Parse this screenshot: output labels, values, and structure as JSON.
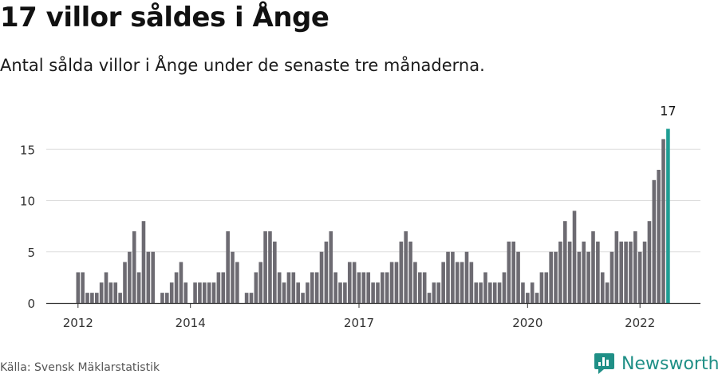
{
  "header": {
    "title": "17 villor såldes i Ånge",
    "subtitle": "Antal sålda villor i Ånge under de senaste tre månaderna."
  },
  "footer": {
    "source": "Källa: Svensk Mäklarstatistik",
    "brand": "Newsworthy"
  },
  "colors": {
    "bar": "#6d6b72",
    "highlight": "#1f9e94",
    "grid": "#dddddd",
    "axis": "#333333",
    "brand": "#1f8f86"
  },
  "chart_data": {
    "type": "bar",
    "title": "17 villor såldes i Ånge",
    "subtitle": "Antal sålda villor i Ånge under de senaste tre månaderna.",
    "xlabel": "",
    "ylabel": "",
    "ylim": [
      0,
      18
    ],
    "yticks": [
      0,
      5,
      10,
      15
    ],
    "xtick_labels": [
      {
        "label": "2012",
        "index": 0
      },
      {
        "label": "2014",
        "index": 24
      },
      {
        "label": "2017",
        "index": 60
      },
      {
        "label": "2020",
        "index": 96
      },
      {
        "label": "2022",
        "index": 120
      }
    ],
    "values": [
      3,
      3,
      1,
      1,
      1,
      2,
      3,
      2,
      2,
      1,
      4,
      5,
      7,
      3,
      8,
      5,
      5,
      0,
      1,
      1,
      2,
      3,
      4,
      2,
      0,
      2,
      2,
      2,
      2,
      2,
      3,
      3,
      7,
      5,
      4,
      0,
      1,
      1,
      3,
      4,
      7,
      7,
      6,
      3,
      2,
      3,
      3,
      2,
      1,
      2,
      3,
      3,
      5,
      6,
      7,
      3,
      2,
      2,
      4,
      4,
      3,
      3,
      3,
      2,
      2,
      3,
      3,
      4,
      4,
      6,
      7,
      6,
      4,
      3,
      3,
      1,
      2,
      2,
      4,
      5,
      5,
      4,
      4,
      5,
      4,
      2,
      2,
      3,
      2,
      2,
      2,
      3,
      6,
      6,
      5,
      2,
      1,
      2,
      1,
      3,
      3,
      5,
      5,
      6,
      8,
      6,
      9,
      5,
      6,
      5,
      7,
      6,
      3,
      2,
      5,
      7,
      6,
      6,
      6,
      7,
      5,
      6,
      8,
      12,
      13,
      16,
      17
    ],
    "highlight_index": 126,
    "highlight_label": "17"
  }
}
